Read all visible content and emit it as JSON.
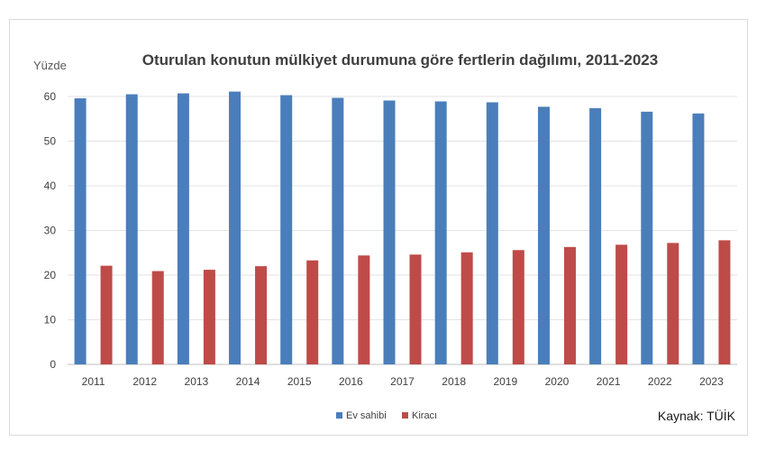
{
  "chart_data": {
    "type": "bar",
    "title": "Oturulan konutun mülkiyet durumuna göre fertlerin dağılımı, 2011-2023",
    "ylabel": "Yüzde",
    "xlabel": "",
    "ylim": [
      0,
      60
    ],
    "yticks": [
      0,
      10,
      20,
      30,
      40,
      50,
      60
    ],
    "grid": true,
    "legend_position": "bottom",
    "categories": [
      "2011",
      "2012",
      "2013",
      "2014",
      "2015",
      "2016",
      "2017",
      "2018",
      "2019",
      "2020",
      "2021",
      "2022",
      "2023"
    ],
    "series": [
      {
        "name": "Ev sahibi",
        "color": "#4a7ebb",
        "values": [
          59.6,
          60.5,
          60.7,
          61.1,
          60.3,
          59.7,
          59.1,
          58.9,
          58.7,
          57.7,
          57.4,
          56.6,
          56.2
        ]
      },
      {
        "name": "Kiracı",
        "color": "#be4b48",
        "values": [
          22.1,
          20.9,
          21.2,
          22.0,
          23.3,
          24.4,
          24.6,
          25.1,
          25.6,
          26.3,
          26.8,
          27.2,
          27.8
        ]
      }
    ],
    "source": "Kaynak: TÜİK"
  }
}
